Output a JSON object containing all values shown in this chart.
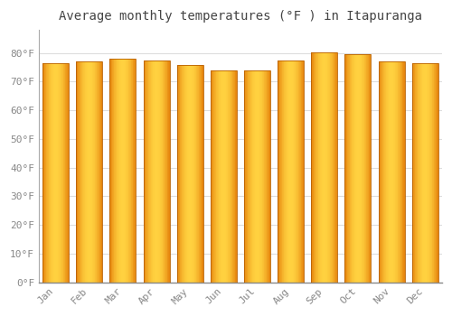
{
  "title": "Average monthly temperatures (°F ) in Itapuranga",
  "months": [
    "Jan",
    "Feb",
    "Mar",
    "Apr",
    "May",
    "Jun",
    "Jul",
    "Aug",
    "Sep",
    "Oct",
    "Nov",
    "Dec"
  ],
  "values": [
    76.5,
    77.0,
    78.0,
    77.5,
    75.7,
    74.0,
    73.8,
    77.5,
    80.2,
    79.5,
    77.2,
    76.5
  ],
  "bar_color_center": "#FFD060",
  "bar_color_edge": "#E08000",
  "background_color": "#FFFFFF",
  "grid_color": "#DDDDDD",
  "ylim": [
    0,
    88
  ],
  "yticks": [
    0,
    10,
    20,
    30,
    40,
    50,
    60,
    70,
    80
  ],
  "ytick_labels": [
    "0°F",
    "10°F",
    "20°F",
    "30°F",
    "40°F",
    "50°F",
    "60°F",
    "70°F",
    "80°F"
  ],
  "title_fontsize": 10,
  "tick_fontsize": 8,
  "title_color": "#444444",
  "tick_color": "#888888",
  "font_family": "monospace",
  "bar_width": 0.78
}
